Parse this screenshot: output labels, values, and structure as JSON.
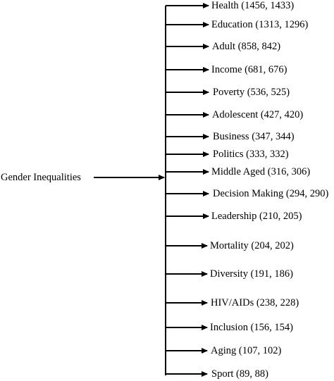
{
  "root": {
    "label": "Gender Inequalities"
  },
  "branches": [
    {
      "label": "Health (1456, 1433)"
    },
    {
      "label": "Education (1313, 1296)"
    },
    {
      "label": "Adult (858, 842)"
    },
    {
      "label": "Income (681, 676)"
    },
    {
      "label": "Poverty (536, 525)"
    },
    {
      "label": "Adolescent (427, 420)"
    },
    {
      "label": "Business (347, 344)"
    },
    {
      "label": "Politics (333, 332)"
    },
    {
      "label": "Middle Aged (316, 306)"
    },
    {
      "label": "Decision Making (294, 290)"
    },
    {
      "label": "Leadership (210, 205)"
    },
    {
      "label": "Mortality (204, 202)"
    },
    {
      "label": "Diversity (191, 186)"
    },
    {
      "label": "HIV/AIDs (238, 228)"
    },
    {
      "label": "Inclusion (156, 154)"
    },
    {
      "label": "Aging (107, 102)"
    },
    {
      "label": "Sport (89, 88)"
    }
  ]
}
